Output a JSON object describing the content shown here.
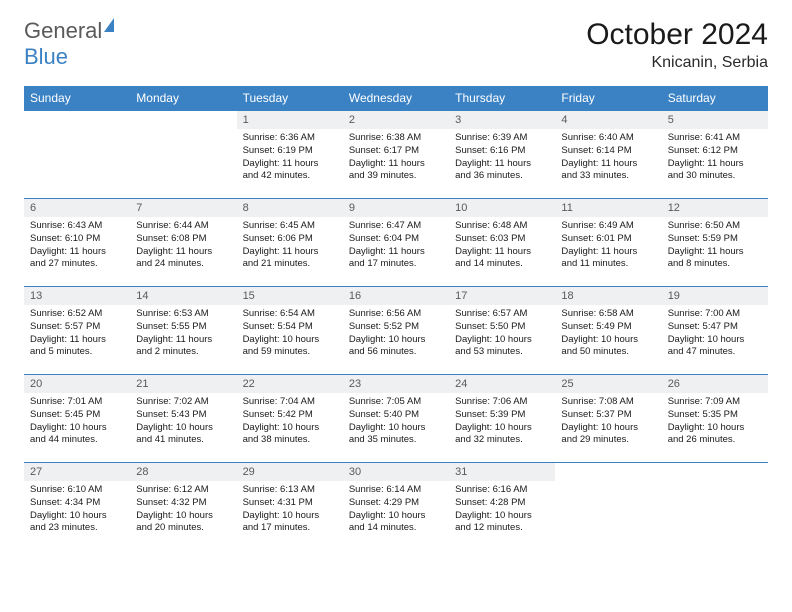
{
  "logo": {
    "general": "General",
    "blue": "Blue"
  },
  "title": "October 2024",
  "location": "Knicanin, Serbia",
  "weekday_headers": [
    "Sunday",
    "Monday",
    "Tuesday",
    "Wednesday",
    "Thursday",
    "Friday",
    "Saturday"
  ],
  "colors": {
    "header_bg": "#3b82c4",
    "header_text": "#ffffff",
    "daynum_bg": "#eef0f1",
    "daynum_text": "#5a5a5a",
    "border": "#3b82c4",
    "body_text": "#1a1a1a",
    "logo_gray": "#5a5a5a",
    "logo_blue": "#3b82c4"
  },
  "weeks": [
    [
      null,
      null,
      {
        "n": "1",
        "sunrise": "Sunrise: 6:36 AM",
        "sunset": "Sunset: 6:19 PM",
        "daylight": "Daylight: 11 hours and 42 minutes."
      },
      {
        "n": "2",
        "sunrise": "Sunrise: 6:38 AM",
        "sunset": "Sunset: 6:17 PM",
        "daylight": "Daylight: 11 hours and 39 minutes."
      },
      {
        "n": "3",
        "sunrise": "Sunrise: 6:39 AM",
        "sunset": "Sunset: 6:16 PM",
        "daylight": "Daylight: 11 hours and 36 minutes."
      },
      {
        "n": "4",
        "sunrise": "Sunrise: 6:40 AM",
        "sunset": "Sunset: 6:14 PM",
        "daylight": "Daylight: 11 hours and 33 minutes."
      },
      {
        "n": "5",
        "sunrise": "Sunrise: 6:41 AM",
        "sunset": "Sunset: 6:12 PM",
        "daylight": "Daylight: 11 hours and 30 minutes."
      }
    ],
    [
      {
        "n": "6",
        "sunrise": "Sunrise: 6:43 AM",
        "sunset": "Sunset: 6:10 PM",
        "daylight": "Daylight: 11 hours and 27 minutes."
      },
      {
        "n": "7",
        "sunrise": "Sunrise: 6:44 AM",
        "sunset": "Sunset: 6:08 PM",
        "daylight": "Daylight: 11 hours and 24 minutes."
      },
      {
        "n": "8",
        "sunrise": "Sunrise: 6:45 AM",
        "sunset": "Sunset: 6:06 PM",
        "daylight": "Daylight: 11 hours and 21 minutes."
      },
      {
        "n": "9",
        "sunrise": "Sunrise: 6:47 AM",
        "sunset": "Sunset: 6:04 PM",
        "daylight": "Daylight: 11 hours and 17 minutes."
      },
      {
        "n": "10",
        "sunrise": "Sunrise: 6:48 AM",
        "sunset": "Sunset: 6:03 PM",
        "daylight": "Daylight: 11 hours and 14 minutes."
      },
      {
        "n": "11",
        "sunrise": "Sunrise: 6:49 AM",
        "sunset": "Sunset: 6:01 PM",
        "daylight": "Daylight: 11 hours and 11 minutes."
      },
      {
        "n": "12",
        "sunrise": "Sunrise: 6:50 AM",
        "sunset": "Sunset: 5:59 PM",
        "daylight": "Daylight: 11 hours and 8 minutes."
      }
    ],
    [
      {
        "n": "13",
        "sunrise": "Sunrise: 6:52 AM",
        "sunset": "Sunset: 5:57 PM",
        "daylight": "Daylight: 11 hours and 5 minutes."
      },
      {
        "n": "14",
        "sunrise": "Sunrise: 6:53 AM",
        "sunset": "Sunset: 5:55 PM",
        "daylight": "Daylight: 11 hours and 2 minutes."
      },
      {
        "n": "15",
        "sunrise": "Sunrise: 6:54 AM",
        "sunset": "Sunset: 5:54 PM",
        "daylight": "Daylight: 10 hours and 59 minutes."
      },
      {
        "n": "16",
        "sunrise": "Sunrise: 6:56 AM",
        "sunset": "Sunset: 5:52 PM",
        "daylight": "Daylight: 10 hours and 56 minutes."
      },
      {
        "n": "17",
        "sunrise": "Sunrise: 6:57 AM",
        "sunset": "Sunset: 5:50 PM",
        "daylight": "Daylight: 10 hours and 53 minutes."
      },
      {
        "n": "18",
        "sunrise": "Sunrise: 6:58 AM",
        "sunset": "Sunset: 5:49 PM",
        "daylight": "Daylight: 10 hours and 50 minutes."
      },
      {
        "n": "19",
        "sunrise": "Sunrise: 7:00 AM",
        "sunset": "Sunset: 5:47 PM",
        "daylight": "Daylight: 10 hours and 47 minutes."
      }
    ],
    [
      {
        "n": "20",
        "sunrise": "Sunrise: 7:01 AM",
        "sunset": "Sunset: 5:45 PM",
        "daylight": "Daylight: 10 hours and 44 minutes."
      },
      {
        "n": "21",
        "sunrise": "Sunrise: 7:02 AM",
        "sunset": "Sunset: 5:43 PM",
        "daylight": "Daylight: 10 hours and 41 minutes."
      },
      {
        "n": "22",
        "sunrise": "Sunrise: 7:04 AM",
        "sunset": "Sunset: 5:42 PM",
        "daylight": "Daylight: 10 hours and 38 minutes."
      },
      {
        "n": "23",
        "sunrise": "Sunrise: 7:05 AM",
        "sunset": "Sunset: 5:40 PM",
        "daylight": "Daylight: 10 hours and 35 minutes."
      },
      {
        "n": "24",
        "sunrise": "Sunrise: 7:06 AM",
        "sunset": "Sunset: 5:39 PM",
        "daylight": "Daylight: 10 hours and 32 minutes."
      },
      {
        "n": "25",
        "sunrise": "Sunrise: 7:08 AM",
        "sunset": "Sunset: 5:37 PM",
        "daylight": "Daylight: 10 hours and 29 minutes."
      },
      {
        "n": "26",
        "sunrise": "Sunrise: 7:09 AM",
        "sunset": "Sunset: 5:35 PM",
        "daylight": "Daylight: 10 hours and 26 minutes."
      }
    ],
    [
      {
        "n": "27",
        "sunrise": "Sunrise: 6:10 AM",
        "sunset": "Sunset: 4:34 PM",
        "daylight": "Daylight: 10 hours and 23 minutes."
      },
      {
        "n": "28",
        "sunrise": "Sunrise: 6:12 AM",
        "sunset": "Sunset: 4:32 PM",
        "daylight": "Daylight: 10 hours and 20 minutes."
      },
      {
        "n": "29",
        "sunrise": "Sunrise: 6:13 AM",
        "sunset": "Sunset: 4:31 PM",
        "daylight": "Daylight: 10 hours and 17 minutes."
      },
      {
        "n": "30",
        "sunrise": "Sunrise: 6:14 AM",
        "sunset": "Sunset: 4:29 PM",
        "daylight": "Daylight: 10 hours and 14 minutes."
      },
      {
        "n": "31",
        "sunrise": "Sunrise: 6:16 AM",
        "sunset": "Sunset: 4:28 PM",
        "daylight": "Daylight: 10 hours and 12 minutes."
      },
      null,
      null
    ]
  ]
}
